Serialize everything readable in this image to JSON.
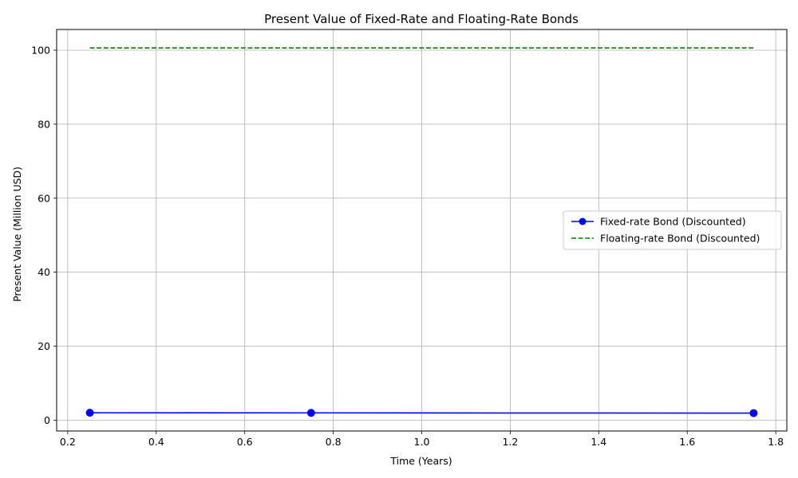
{
  "chart_data": {
    "type": "line",
    "title": "Present Value of Fixed-Rate and Floating-Rate Bonds",
    "xlabel": "Time (Years)",
    "ylabel": "Present Value (Million USD)",
    "xlim": [
      0.175,
      1.825
    ],
    "ylim": [
      -2.93,
      105.6
    ],
    "xticks": [
      0.2,
      0.4,
      0.6,
      0.8,
      1.0,
      1.2,
      1.4,
      1.6,
      1.8
    ],
    "xtick_labels": [
      "0.2",
      "0.4",
      "0.6",
      "0.8",
      "1.0",
      "1.2",
      "1.4",
      "1.6",
      "1.8"
    ],
    "yticks": [
      0,
      20,
      40,
      60,
      80,
      100
    ],
    "ytick_labels": [
      "0",
      "20",
      "40",
      "60",
      "80",
      "100"
    ],
    "grid": true,
    "legend_position": "center-right",
    "series": [
      {
        "name": "Fixed-rate Bond (Discounted)",
        "color": "#0000ff",
        "style": "solid",
        "marker": "circle",
        "x": [
          0.25,
          0.75,
          1.75
        ],
        "y": [
          2.0,
          1.97,
          1.9
        ]
      },
      {
        "name": "Floating-rate Bond (Discounted)",
        "color": "#008000",
        "style": "dashed",
        "marker": "none",
        "x": [
          0.25,
          1.75
        ],
        "y": [
          100.6,
          100.6
        ]
      }
    ]
  }
}
